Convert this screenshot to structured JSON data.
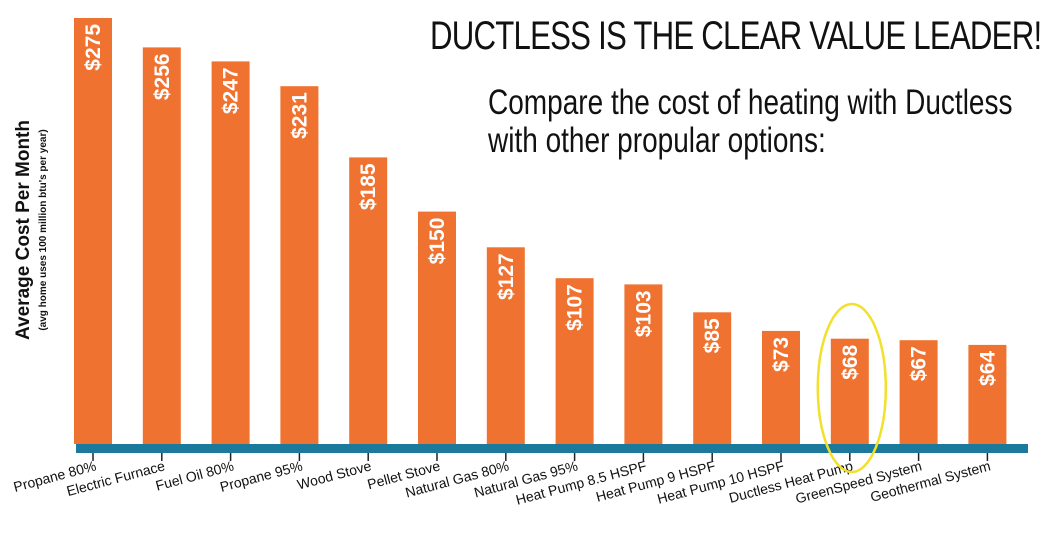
{
  "header": {
    "title": "DUCTLESS IS THE CLEAR VALUE LEADER!",
    "subtitle_line1": "Compare the cost of heating with Ductless",
    "subtitle_line2": "with other propular options:"
  },
  "chart_data": {
    "type": "bar",
    "title": "DUCTLESS IS THE CLEAR VALUE LEADER!",
    "ylabel": "Average Cost Per Month",
    "ylabel_note": "(avg home uses 100 million btu's per year)",
    "xlabel": "",
    "ylim": [
      0,
      275
    ],
    "grid": false,
    "categories": [
      "Propane 80%",
      "Electric Furnace",
      "Fuel Oil 80%",
      "Propane 95%",
      "Wood Stove",
      "Pellet Stove",
      "Natural Gas 80%",
      "Natural Gas 95%",
      "Heat Pump 8.5 HSPF",
      "Heat Pump 9 HSPF",
      "Heat Pump 10 HSPF",
      "Ductless Heat Pump",
      "GreenSpeed System",
      "Geothermal System"
    ],
    "values": [
      275,
      256,
      247,
      231,
      185,
      150,
      127,
      107,
      103,
      85,
      73,
      68,
      67,
      64
    ],
    "data_labels": [
      "$275",
      "$256",
      "$247",
      "$231",
      "$185",
      "$150",
      "$127",
      "$107",
      "$103",
      "$85",
      "$73",
      "$68",
      "$67",
      "$64"
    ],
    "highlighted_category": "Ductless Heat Pump",
    "colors": {
      "bar": "#f07230",
      "baseline": "#1b7a9c",
      "highlight": "#f2e02a",
      "label": "#ffffff",
      "text": "#111111"
    }
  }
}
